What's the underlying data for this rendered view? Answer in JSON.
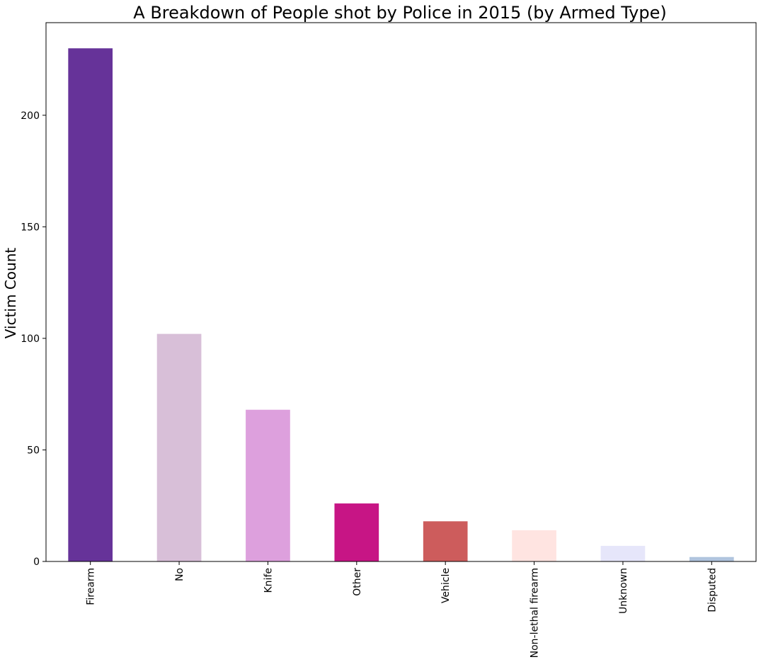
{
  "chart_data": {
    "type": "bar",
    "title": "A Breakdown of People shot by Police in 2015 (by Armed Type)",
    "xlabel": "",
    "ylabel": "Victim Count",
    "categories": [
      "Firearm",
      "No",
      "Knife",
      "Other",
      "Vehicle",
      "Non-lethal firearm",
      "Unknown",
      "Disputed"
    ],
    "values": [
      230,
      102,
      68,
      26,
      18,
      14,
      7,
      2
    ],
    "colors": [
      "#663399",
      "#D8BFD8",
      "#DDA0DD",
      "#C71585",
      "#CD5C5C",
      "#FFE4E1",
      "#E6E6FA",
      "#B0C4DE"
    ],
    "ylim": [
      0,
      241.5
    ],
    "yticks": [
      0,
      50,
      100,
      150,
      200
    ],
    "grid": false,
    "legend": "none"
  }
}
